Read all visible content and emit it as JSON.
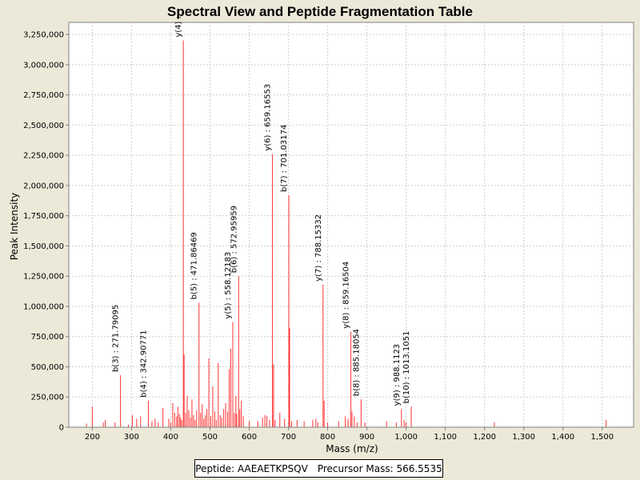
{
  "chart_data": {
    "type": "bar",
    "title": "Spectral View and Peptide Fragmentation Table",
    "xlabel": "Mass (m/z)",
    "ylabel": "Peak Intensity",
    "xlim": [
      140,
      1580
    ],
    "ylim": [
      0,
      3350000
    ],
    "x_ticks": [
      200,
      300,
      400,
      500,
      600,
      700,
      800,
      900,
      1000,
      1100,
      1200,
      1300,
      1400,
      1500
    ],
    "x_tick_labels": [
      "200",
      "300",
      "400",
      "500",
      "600",
      "700",
      "800",
      "900",
      "1,000",
      "1,100",
      "1,200",
      "1,300",
      "1,400",
      "1,500"
    ],
    "y_ticks": [
      0,
      250000,
      500000,
      750000,
      1000000,
      1250000,
      1500000,
      1750000,
      2000000,
      2250000,
      2500000,
      2750000,
      3000000,
      3250000
    ],
    "y_tick_labels": [
      "0",
      "250,000",
      "500,000",
      "750,000",
      "1,000,000",
      "1,250,000",
      "1,500,000",
      "1,750,000",
      "2,000,000",
      "2,250,000",
      "2,500,000",
      "2,750,000",
      "3,000,000",
      "3,250,000"
    ],
    "grid": true,
    "peak_color": "#ff3333",
    "peaks": [
      [
        185,
        30000
      ],
      [
        200,
        170000
      ],
      [
        228,
        40000
      ],
      [
        233,
        60000
      ],
      [
        258,
        40000
      ],
      [
        271.8,
        430000
      ],
      [
        292,
        20000
      ],
      [
        302,
        100000
      ],
      [
        313,
        70000
      ],
      [
        323,
        90000
      ],
      [
        342.9,
        220000
      ],
      [
        352,
        50000
      ],
      [
        360,
        70000
      ],
      [
        368,
        40000
      ],
      [
        380,
        160000
      ],
      [
        395,
        70000
      ],
      [
        400,
        40000
      ],
      [
        405,
        200000
      ],
      [
        410,
        120000
      ],
      [
        415,
        90000
      ],
      [
        418,
        170000
      ],
      [
        422,
        110000
      ],
      [
        425,
        80000
      ],
      [
        428,
        60000
      ],
      [
        432,
        3200000
      ],
      [
        434,
        600000
      ],
      [
        438,
        120000
      ],
      [
        442,
        260000
      ],
      [
        446,
        140000
      ],
      [
        450,
        80000
      ],
      [
        454,
        230000
      ],
      [
        458,
        100000
      ],
      [
        462,
        60000
      ],
      [
        466,
        140000
      ],
      [
        471.9,
        1030000
      ],
      [
        476,
        120000
      ],
      [
        480,
        190000
      ],
      [
        484,
        70000
      ],
      [
        488,
        100000
      ],
      [
        492,
        150000
      ],
      [
        497,
        570000
      ],
      [
        502,
        90000
      ],
      [
        507,
        340000
      ],
      [
        512,
        130000
      ],
      [
        516,
        60000
      ],
      [
        521,
        530000
      ],
      [
        526,
        100000
      ],
      [
        530,
        80000
      ],
      [
        535,
        150000
      ],
      [
        540,
        200000
      ],
      [
        545,
        130000
      ],
      [
        549,
        480000
      ],
      [
        553,
        650000
      ],
      [
        558.1,
        870000
      ],
      [
        562,
        120000
      ],
      [
        566,
        260000
      ],
      [
        568,
        110000
      ],
      [
        573,
        1250000
      ],
      [
        576,
        150000
      ],
      [
        580,
        220000
      ],
      [
        585,
        90000
      ],
      [
        600,
        50000
      ],
      [
        622,
        50000
      ],
      [
        634,
        80000
      ],
      [
        640,
        100000
      ],
      [
        645,
        90000
      ],
      [
        652,
        60000
      ],
      [
        659.2,
        2260000
      ],
      [
        662,
        520000
      ],
      [
        666,
        60000
      ],
      [
        678,
        120000
      ],
      [
        690,
        70000
      ],
      [
        701,
        1920000
      ],
      [
        703,
        820000
      ],
      [
        708,
        50000
      ],
      [
        722,
        60000
      ],
      [
        740,
        50000
      ],
      [
        762,
        60000
      ],
      [
        770,
        70000
      ],
      [
        775,
        40000
      ],
      [
        788.2,
        1180000
      ],
      [
        791,
        220000
      ],
      [
        800,
        40000
      ],
      [
        828,
        50000
      ],
      [
        845,
        90000
      ],
      [
        852,
        70000
      ],
      [
        859.2,
        790000
      ],
      [
        862,
        130000
      ],
      [
        868,
        90000
      ],
      [
        875,
        40000
      ],
      [
        885.2,
        230000
      ],
      [
        895,
        40000
      ],
      [
        950,
        50000
      ],
      [
        975,
        40000
      ],
      [
        988.1,
        150000
      ],
      [
        995,
        60000
      ],
      [
        1000,
        40000
      ],
      [
        1013.1,
        170000
      ],
      [
        1225,
        40000
      ],
      [
        1510,
        60000
      ]
    ],
    "annotations": [
      {
        "x": 271.8,
        "y": 430000,
        "label": "b(3) : 271.79095"
      },
      {
        "x": 342.9,
        "y": 220000,
        "label": "b(4) : 342.90771"
      },
      {
        "x": 432,
        "y": 3200000,
        "label": "y(4) :"
      },
      {
        "x": 471.9,
        "y": 1030000,
        "label": "b(5) : 471.86469"
      },
      {
        "x": 558.1,
        "y": 870000,
        "label": "y(5) : 558.12183"
      },
      {
        "x": 573,
        "y": 1250000,
        "label": "b(6) : 572.95959"
      },
      {
        "x": 659.2,
        "y": 2260000,
        "label": "y(6) : 659.16553"
      },
      {
        "x": 701,
        "y": 1920000,
        "label": "b(7) : 701.03174"
      },
      {
        "x": 788.2,
        "y": 1180000,
        "label": "y(7) : 788.15332"
      },
      {
        "x": 859.2,
        "y": 790000,
        "label": "y(8) : 859.16504"
      },
      {
        "x": 885.2,
        "y": 230000,
        "label": "b(8) : 885.18054"
      },
      {
        "x": 988.1,
        "y": 150000,
        "label": "y(9) : 988.1123"
      },
      {
        "x": 1013.1,
        "y": 170000,
        "label": "b(10) : 1013.1051"
      }
    ]
  },
  "legend": {
    "peptide": "Peptide: AAEAETKPSQV",
    "precursor": "Precursor Mass: 566.5535"
  }
}
